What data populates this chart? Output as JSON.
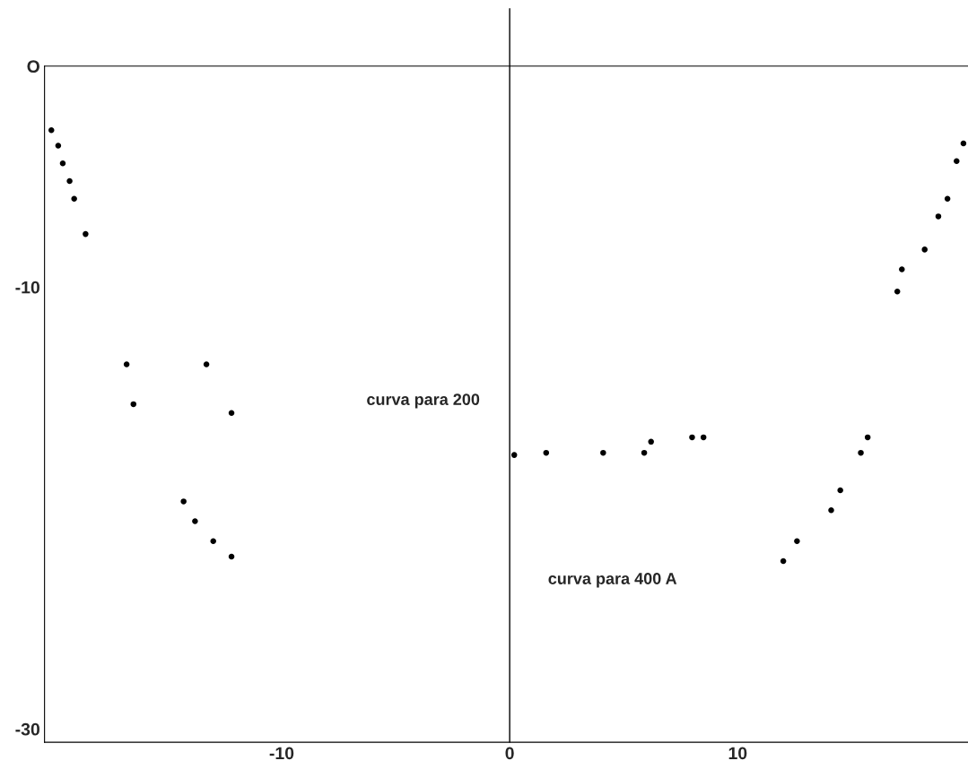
{
  "chart_data": {
    "type": "scatter",
    "xlim": [
      -20.4,
      20.1
    ],
    "ylim": [
      -30.6,
      0
    ],
    "xticks": [
      -10,
      0,
      10
    ],
    "yticks": [
      -30,
      -10,
      {
        "value": 0,
        "label": "O"
      }
    ],
    "ref_lines": [
      {
        "axis": "x",
        "value": 0,
        "color": "#000000"
      }
    ],
    "marker": "circle",
    "grid": false,
    "legend": false,
    "series": [
      {
        "color": "#000000",
        "x": [
          -20.1,
          -19.8,
          -19.6,
          -19.3,
          -19.1,
          -18.6,
          17.0,
          17.2,
          18.2,
          18.8,
          19.2,
          19.6,
          19.9
        ],
        "values": [
          -2.9,
          -3.6,
          -4.4,
          -5.2,
          -6.0,
          -7.6,
          -10.2,
          -9.2,
          -8.3,
          -6.8,
          -6.0,
          -4.3,
          -3.5
        ]
      },
      {
        "color": "#000000",
        "x": [
          -16.8,
          -16.5,
          -13.3,
          -12.2,
          0.2,
          1.6,
          4.1,
          5.9,
          6.2,
          8.0,
          8.5
        ],
        "values": [
          -13.5,
          -15.3,
          -13.5,
          -15.7,
          -17.6,
          -17.5,
          -17.5,
          -17.5,
          -17.0,
          -16.8,
          -16.8
        ]
      },
      {
        "color": "#000000",
        "x": [
          -14.3,
          -13.8,
          -13.0,
          -12.2,
          12.0,
          12.6,
          14.1,
          14.5,
          15.4,
          15.7
        ],
        "values": [
          -19.7,
          -20.6,
          -21.5,
          -22.2,
          -22.4,
          -21.5,
          -20.1,
          -19.2,
          -17.5,
          -16.8
        ]
      }
    ],
    "annotations": [
      "curva para 200",
      "curva para 400 A"
    ]
  }
}
